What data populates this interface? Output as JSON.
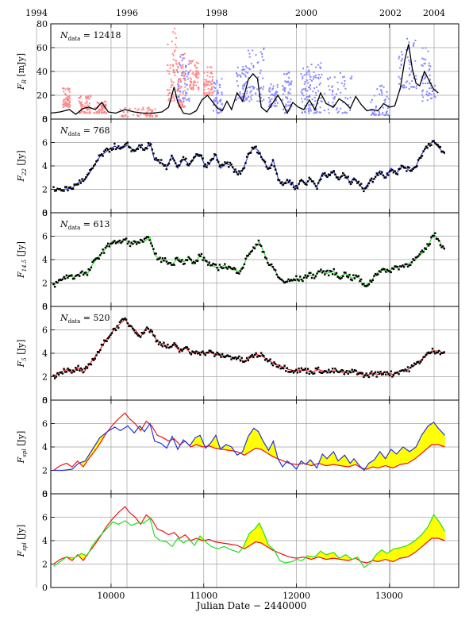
{
  "figure": {
    "xlabel": "Julian Date − 2440000",
    "top_axis_years": [
      "1994",
      "1996",
      "1998",
      "2000",
      "2002",
      "2004"
    ],
    "xlim": [
      9350,
      13750
    ],
    "xticks": [
      10000,
      11000,
      12000,
      13000
    ],
    "colors": {
      "black": "#000000",
      "red": "#ee1111",
      "blue": "#2233dd",
      "green": "#22dd22",
      "fill": "#ffff00",
      "pink": "#ff8888",
      "lilac": "#8888ff",
      "grid": "#a0a0a0"
    }
  },
  "chart_data": [
    {
      "type": "scatter",
      "id": "optical",
      "ylabel_main": "F",
      "ylabel_sub": "R",
      "ylabel_unit": "[mJy]",
      "ndata_label": "N",
      "ndata_sub": "data",
      "ndata_value": "= 12418",
      "ylim": [
        0,
        80
      ],
      "yticks": [
        0,
        20,
        40,
        60,
        80
      ],
      "spline": [
        [
          9350,
          5
        ],
        [
          9450,
          6
        ],
        [
          9550,
          8
        ],
        [
          9620,
          4
        ],
        [
          9700,
          9
        ],
        [
          9760,
          10
        ],
        [
          9830,
          8
        ],
        [
          9900,
          14
        ],
        [
          9970,
          6
        ],
        [
          10050,
          5
        ],
        [
          10150,
          8
        ],
        [
          10250,
          6
        ],
        [
          10350,
          5
        ],
        [
          10450,
          5
        ],
        [
          10550,
          6
        ],
        [
          10620,
          10
        ],
        [
          10680,
          27
        ],
        [
          10720,
          14
        ],
        [
          10780,
          5
        ],
        [
          10850,
          4
        ],
        [
          10920,
          7
        ],
        [
          10980,
          16
        ],
        [
          11040,
          20
        ],
        [
          11100,
          14
        ],
        [
          11150,
          9
        ],
        [
          11200,
          7
        ],
        [
          11250,
          15
        ],
        [
          11300,
          8
        ],
        [
          11360,
          22
        ],
        [
          11420,
          15
        ],
        [
          11480,
          33
        ],
        [
          11530,
          38
        ],
        [
          11580,
          34
        ],
        [
          11620,
          10
        ],
        [
          11680,
          6
        ],
        [
          11740,
          13
        ],
        [
          11800,
          20
        ],
        [
          11840,
          15
        ],
        [
          11900,
          5
        ],
        [
          11960,
          14
        ],
        [
          12020,
          10
        ],
        [
          12080,
          8
        ],
        [
          12140,
          16
        ],
        [
          12200,
          8
        ],
        [
          12260,
          22
        ],
        [
          12320,
          13
        ],
        [
          12400,
          10
        ],
        [
          12460,
          17
        ],
        [
          12520,
          14
        ],
        [
          12580,
          9
        ],
        [
          12640,
          19
        ],
        [
          12700,
          12
        ],
        [
          12760,
          7
        ],
        [
          12820,
          8
        ],
        [
          12880,
          7
        ],
        [
          12940,
          13
        ],
        [
          13000,
          10
        ],
        [
          13060,
          11
        ],
        [
          13120,
          26
        ],
        [
          13170,
          50
        ],
        [
          13210,
          63
        ],
        [
          13250,
          42
        ],
        [
          13290,
          30
        ],
        [
          13330,
          28
        ],
        [
          13380,
          40
        ],
        [
          13420,
          34
        ],
        [
          13480,
          25
        ],
        [
          13530,
          22
        ]
      ],
      "red_clusters": [
        [
          9480,
          9560,
          10,
          28
        ],
        [
          9650,
          9780,
          5,
          20
        ],
        [
          9820,
          9950,
          5,
          15
        ],
        [
          10100,
          10500,
          2,
          10
        ],
        [
          10600,
          10720,
          15,
          78
        ],
        [
          10720,
          10800,
          10,
          55
        ],
        [
          10850,
          10950,
          25,
          50
        ],
        [
          11000,
          11100,
          20,
          45
        ]
      ],
      "blue_clusters": [
        [
          10720,
          10850,
          15,
          55
        ],
        [
          11100,
          11200,
          5,
          35
        ],
        [
          11350,
          11480,
          15,
          45
        ],
        [
          11480,
          11650,
          15,
          60
        ],
        [
          11700,
          11800,
          10,
          30
        ],
        [
          11850,
          11950,
          5,
          40
        ],
        [
          12050,
          12150,
          5,
          45
        ],
        [
          12150,
          12280,
          5,
          50
        ],
        [
          12300,
          12600,
          5,
          40
        ],
        [
          12800,
          13000,
          3,
          30
        ],
        [
          13100,
          13300,
          25,
          68
        ],
        [
          13350,
          13500,
          15,
          60
        ]
      ]
    },
    {
      "type": "line",
      "id": "f22",
      "ylabel_main": "F",
      "ylabel_sub": "22",
      "ylabel_unit": "[Jy]",
      "ndata_label": "N",
      "ndata_sub": "data",
      "ndata_value": "= 768",
      "ylim": [
        0,
        8
      ],
      "yticks": [
        0,
        2,
        4,
        6,
        8
      ],
      "curve_color": "#2233dd",
      "curve": [
        [
          9380,
          2.0
        ],
        [
          9480,
          2.0
        ],
        [
          9580,
          2.1
        ],
        [
          9650,
          2.6
        ],
        [
          9720,
          2.8
        ],
        [
          9800,
          3.8
        ],
        [
          9880,
          4.8
        ],
        [
          9960,
          5.3
        ],
        [
          10040,
          5.7
        ],
        [
          10100,
          5.4
        ],
        [
          10180,
          5.8
        ],
        [
          10250,
          5.2
        ],
        [
          10310,
          5.8
        ],
        [
          10360,
          5.3
        ],
        [
          10420,
          6.0
        ],
        [
          10470,
          4.5
        ],
        [
          10540,
          4.3
        ],
        [
          10600,
          3.9
        ],
        [
          10660,
          4.9
        ],
        [
          10720,
          3.8
        ],
        [
          10780,
          4.6
        ],
        [
          10850,
          4.1
        ],
        [
          10910,
          4.8
        ],
        [
          10960,
          5.0
        ],
        [
          11020,
          3.9
        ],
        [
          11080,
          4.4
        ],
        [
          11130,
          5.0
        ],
        [
          11180,
          3.8
        ],
        [
          11240,
          4.2
        ],
        [
          11300,
          4.0
        ],
        [
          11360,
          3.3
        ],
        [
          11420,
          3.6
        ],
        [
          11480,
          4.9
        ],
        [
          11540,
          5.6
        ],
        [
          11590,
          5.3
        ],
        [
          11640,
          4.5
        ],
        [
          11700,
          3.7
        ],
        [
          11750,
          4.5
        ],
        [
          11800,
          3.0
        ],
        [
          11850,
          2.3
        ],
        [
          11900,
          2.8
        ],
        [
          11950,
          2.5
        ],
        [
          12000,
          2.1
        ],
        [
          12050,
          2.8
        ],
        [
          12100,
          2.5
        ],
        [
          12150,
          2.9
        ],
        [
          12220,
          2.2
        ],
        [
          12280,
          3.4
        ],
        [
          12330,
          3.0
        ],
        [
          12400,
          3.6
        ],
        [
          12450,
          2.8
        ],
        [
          12520,
          3.3
        ],
        [
          12580,
          2.6
        ],
        [
          12620,
          3.0
        ],
        [
          12680,
          2.4
        ],
        [
          12730,
          2.0
        ],
        [
          12780,
          2.6
        ],
        [
          12840,
          2.9
        ],
        [
          12900,
          3.6
        ],
        [
          12960,
          3.0
        ],
        [
          13020,
          3.8
        ],
        [
          13080,
          3.4
        ],
        [
          13150,
          4.0
        ],
        [
          13220,
          3.6
        ],
        [
          13290,
          4.0
        ],
        [
          13350,
          5.0
        ],
        [
          13420,
          5.8
        ],
        [
          13480,
          6.1
        ],
        [
          13530,
          5.6
        ],
        [
          13600,
          5.0
        ]
      ]
    },
    {
      "type": "line",
      "id": "f145",
      "ylabel_main": "F",
      "ylabel_sub": "14.5",
      "ylabel_unit": "[Jy]",
      "ndata_label": "N",
      "ndata_sub": "data",
      "ndata_value": "= 613",
      "ylim": [
        0,
        8
      ],
      "yticks": [
        0,
        2,
        4,
        6,
        8
      ],
      "curve_color": "#22dd22",
      "curve": [
        [
          9380,
          1.8
        ],
        [
          9450,
          2.2
        ],
        [
          9520,
          2.6
        ],
        [
          9600,
          2.5
        ],
        [
          9680,
          2.9
        ],
        [
          9740,
          2.7
        ],
        [
          9800,
          3.6
        ],
        [
          9880,
          4.4
        ],
        [
          9950,
          5.0
        ],
        [
          10020,
          5.6
        ],
        [
          10080,
          5.4
        ],
        [
          10150,
          5.7
        ],
        [
          10220,
          5.3
        ],
        [
          10280,
          5.5
        ],
        [
          10350,
          5.5
        ],
        [
          10420,
          5.9
        ],
        [
          10470,
          4.4
        ],
        [
          10530,
          4.0
        ],
        [
          10600,
          3.9
        ],
        [
          10660,
          3.5
        ],
        [
          10720,
          4.2
        ],
        [
          10780,
          3.8
        ],
        [
          10840,
          4.1
        ],
        [
          10900,
          3.6
        ],
        [
          10960,
          4.4
        ],
        [
          11020,
          3.9
        ],
        [
          11080,
          3.5
        ],
        [
          11150,
          3.3
        ],
        [
          11220,
          3.5
        ],
        [
          11300,
          3.2
        ],
        [
          11380,
          3.0
        ],
        [
          11430,
          3.5
        ],
        [
          11490,
          4.6
        ],
        [
          11550,
          5.0
        ],
        [
          11600,
          5.5
        ],
        [
          11650,
          4.6
        ],
        [
          11700,
          3.6
        ],
        [
          11760,
          3.2
        ],
        [
          11820,
          2.3
        ],
        [
          11880,
          2.1
        ],
        [
          11950,
          2.2
        ],
        [
          12000,
          2.4
        ],
        [
          12060,
          2.3
        ],
        [
          12120,
          2.7
        ],
        [
          12200,
          2.6
        ],
        [
          12260,
          3.1
        ],
        [
          12320,
          2.8
        ],
        [
          12400,
          3.0
        ],
        [
          12460,
          2.5
        ],
        [
          12530,
          2.8
        ],
        [
          12600,
          2.4
        ],
        [
          12660,
          2.6
        ],
        [
          12730,
          1.7
        ],
        [
          12800,
          2.1
        ],
        [
          12860,
          2.8
        ],
        [
          12920,
          3.2
        ],
        [
          12980,
          2.9
        ],
        [
          13050,
          3.3
        ],
        [
          13120,
          3.4
        ],
        [
          13200,
          3.6
        ],
        [
          13280,
          4.0
        ],
        [
          13350,
          4.5
        ],
        [
          13420,
          5.2
        ],
        [
          13480,
          6.2
        ],
        [
          13540,
          5.6
        ],
        [
          13600,
          4.8
        ]
      ]
    },
    {
      "type": "line",
      "id": "f5",
      "ylabel_main": "F",
      "ylabel_sub": "5",
      "ylabel_unit": "[Jy]",
      "ndata_label": "N",
      "ndata_sub": "data",
      "ndata_value": "= 520",
      "ylim": [
        0,
        8
      ],
      "yticks": [
        0,
        2,
        4,
        6,
        8
      ],
      "curve_color": "#ee1111",
      "curve": [
        [
          9380,
          2.0
        ],
        [
          9450,
          2.4
        ],
        [
          9520,
          2.6
        ],
        [
          9580,
          2.3
        ],
        [
          9640,
          2.8
        ],
        [
          9700,
          2.3
        ],
        [
          9760,
          3.0
        ],
        [
          9820,
          3.6
        ],
        [
          9880,
          4.3
        ],
        [
          9950,
          5.2
        ],
        [
          10020,
          5.9
        ],
        [
          10080,
          6.4
        ],
        [
          10150,
          6.9
        ],
        [
          10200,
          6.4
        ],
        [
          10260,
          6.0
        ],
        [
          10320,
          5.4
        ],
        [
          10380,
          6.2
        ],
        [
          10440,
          5.8
        ],
        [
          10500,
          5.0
        ],
        [
          10560,
          4.8
        ],
        [
          10620,
          4.5
        ],
        [
          10680,
          4.7
        ],
        [
          10740,
          4.2
        ],
        [
          10800,
          4.5
        ],
        [
          10860,
          4.0
        ],
        [
          10920,
          4.2
        ],
        [
          10990,
          4.0
        ],
        [
          11060,
          4.1
        ],
        [
          11120,
          3.9
        ],
        [
          11200,
          3.8
        ],
        [
          11280,
          3.7
        ],
        [
          11360,
          3.6
        ],
        [
          11440,
          3.3
        ],
        [
          11500,
          3.6
        ],
        [
          11560,
          3.9
        ],
        [
          11620,
          3.8
        ],
        [
          11680,
          3.5
        ],
        [
          11740,
          3.2
        ],
        [
          11800,
          3.0
        ],
        [
          11860,
          2.8
        ],
        [
          11920,
          2.6
        ],
        [
          12000,
          2.5
        ],
        [
          12080,
          2.6
        ],
        [
          12160,
          2.4
        ],
        [
          12240,
          2.6
        ],
        [
          12320,
          2.4
        ],
        [
          12400,
          2.5
        ],
        [
          12480,
          2.4
        ],
        [
          12560,
          2.3
        ],
        [
          12640,
          2.5
        ],
        [
          12700,
          2.2
        ],
        [
          12760,
          2.1
        ],
        [
          12820,
          2.3
        ],
        [
          12880,
          2.2
        ],
        [
          12960,
          2.4
        ],
        [
          13040,
          2.2
        ],
        [
          13120,
          2.5
        ],
        [
          13200,
          2.6
        ],
        [
          13280,
          3.0
        ],
        [
          13340,
          3.4
        ],
        [
          13400,
          3.8
        ],
        [
          13460,
          4.2
        ],
        [
          13530,
          4.2
        ],
        [
          13600,
          4.0
        ]
      ]
    },
    {
      "type": "area",
      "id": "spl-blue",
      "ylabel_main": "F",
      "ylabel_sub": "spl",
      "ylabel_unit": "[Jy]",
      "ylim": [
        0,
        8
      ],
      "yticks": [
        0,
        2,
        4,
        6,
        8
      ],
      "compare": "f22",
      "series_colors": [
        "#2233dd",
        "#ee1111"
      ]
    },
    {
      "type": "area",
      "id": "spl-green",
      "ylabel_main": "F",
      "ylabel_sub": "spl",
      "ylabel_unit": "[Jy]",
      "ylim": [
        0,
        8
      ],
      "yticks": [
        0,
        2,
        4,
        6,
        8
      ],
      "compare": "f145",
      "series_colors": [
        "#22dd22",
        "#ee1111"
      ]
    }
  ]
}
